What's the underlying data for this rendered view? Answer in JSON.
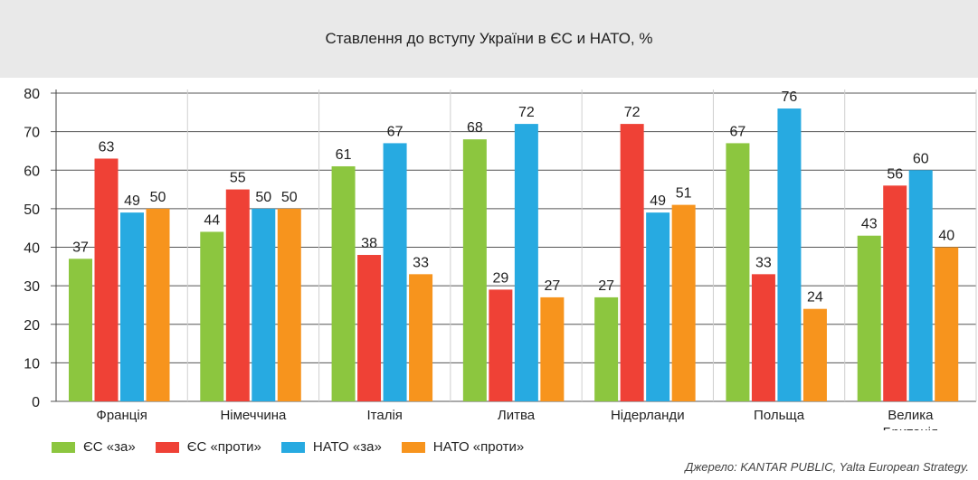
{
  "title": "Ставлення до вступу України в ЄС и НАТО, %",
  "source": "Джерело: KANTAR PUBLIC, Yalta European Strategy.",
  "colors": {
    "header_bg": "#e9e9e9",
    "eu_for": "#8cc63f",
    "eu_against": "#ef4136",
    "nato_for": "#27aae1",
    "nato_against": "#f7941d"
  },
  "legend": [
    {
      "label": "ЄС «за»",
      "color": "#8cc63f"
    },
    {
      "label": "ЄС «проти»",
      "color": "#ef4136"
    },
    {
      "label": "НАТО «за»",
      "color": "#27aae1"
    },
    {
      "label": "НАТО «проти»",
      "color": "#f7941d"
    }
  ],
  "chart_data": {
    "type": "bar",
    "title": "Ставлення до вступу України в ЄС и НАТО, %",
    "xlabel": "",
    "ylabel": "",
    "ylim": [
      0,
      80
    ],
    "yticks": [
      0,
      10,
      20,
      30,
      40,
      50,
      60,
      70,
      80
    ],
    "grid": true,
    "legend_position": "bottom-left",
    "categories": [
      "Франція",
      "Німеччина",
      "Італія",
      "Литва",
      "Нідерланди",
      "Польща",
      "Велика Британія"
    ],
    "category_label_lines": [
      [
        "Франція"
      ],
      [
        "Німеччина"
      ],
      [
        "Італія"
      ],
      [
        "Литва"
      ],
      [
        "Нідерланди"
      ],
      [
        "Польща"
      ],
      [
        "Велика",
        "Британія"
      ]
    ],
    "series": [
      {
        "name": "ЄС «за»",
        "color": "#8cc63f",
        "values": [
          37,
          44,
          61,
          68,
          27,
          67,
          43
        ]
      },
      {
        "name": "ЄС «проти»",
        "color": "#ef4136",
        "values": [
          63,
          55,
          38,
          29,
          72,
          33,
          56
        ]
      },
      {
        "name": "НАТО «за»",
        "color": "#27aae1",
        "values": [
          49,
          50,
          67,
          72,
          49,
          76,
          60
        ]
      },
      {
        "name": "НАТО «проти»",
        "color": "#f7941d",
        "values": [
          50,
          50,
          33,
          27,
          51,
          24,
          40
        ]
      }
    ]
  }
}
